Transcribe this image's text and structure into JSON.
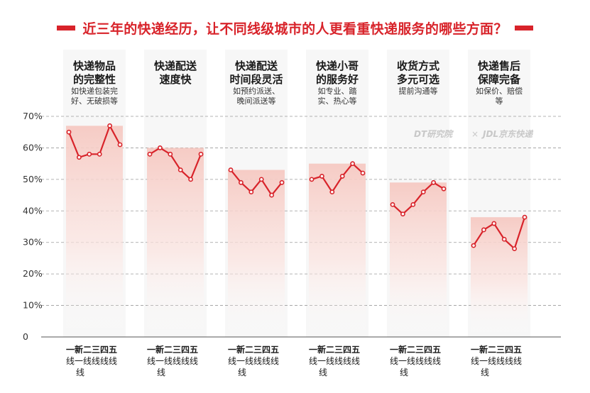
{
  "title": "近三年的快递经历，让不同线级城市的人更看重快递服务的哪些方面？",
  "watermark": {
    "left": "DT研究院",
    "separator": "×",
    "right": "JDL京东快递"
  },
  "colors": {
    "accent": "#d8232a",
    "band_top": "#f6c9c2",
    "band_bottom": "#ffffff",
    "grid": "#9a9a9a"
  },
  "chart_data": {
    "type": "line",
    "ylim": [
      0,
      70
    ],
    "yticks": [
      "0",
      "10%",
      "20%",
      "30%",
      "40%",
      "50%",
      "60%",
      "70%"
    ],
    "grid": "dashed",
    "x_categories_top": "一新二三四五",
    "x_categories_bottom": "线一线线线线",
    "x_categories_last": "线",
    "x_tiers": [
      "一线",
      "新一线",
      "二线",
      "三线",
      "四线",
      "五线"
    ],
    "groups": [
      {
        "title_lines": [
          "快递物品",
          "的完整性"
        ],
        "sub_lines": [
          "如快递包装完",
          "好、无破损等"
        ],
        "values": [
          65,
          57,
          58,
          58,
          67,
          61
        ]
      },
      {
        "title_lines": [
          "快递配送",
          "速度快"
        ],
        "sub_lines": [],
        "values": [
          58,
          60,
          58,
          53,
          50,
          58
        ]
      },
      {
        "title_lines": [
          "快递配送",
          "时间段灵活"
        ],
        "sub_lines": [
          "如预约派送、",
          "晚间派送等"
        ],
        "values": [
          53,
          49,
          46,
          50,
          45,
          49
        ]
      },
      {
        "title_lines": [
          "快递小哥",
          "的服务好"
        ],
        "sub_lines": [
          "如专业、踏",
          "实、热心等"
        ],
        "values": [
          50,
          51,
          46,
          51,
          55,
          52
        ]
      },
      {
        "title_lines": [
          "收货方式",
          "多元可选"
        ],
        "sub_lines": [
          "提前沟通等"
        ],
        "values": [
          42,
          39,
          42,
          46,
          49,
          47
        ]
      },
      {
        "title_lines": [
          "快递售后",
          "保障完备"
        ],
        "sub_lines": [
          "如保价、赔偿",
          "等"
        ],
        "values": [
          29,
          34,
          36,
          31,
          28,
          38
        ]
      }
    ]
  }
}
